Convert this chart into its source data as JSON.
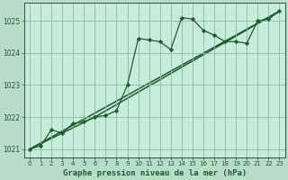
{
  "title": "Graphe pression niveau de la mer (hPa)",
  "background_color": "#b8dcc8",
  "plot_bg_color": "#c8ecdc",
  "grid_color": "#90b8a0",
  "line_color": "#1a5e2a",
  "xlim": [
    -0.5,
    23.5
  ],
  "ylim": [
    1020.75,
    1025.55
  ],
  "yticks": [
    1021,
    1022,
    1023,
    1024,
    1025
  ],
  "xticks": [
    0,
    1,
    2,
    3,
    4,
    5,
    6,
    7,
    8,
    9,
    10,
    11,
    12,
    13,
    14,
    15,
    16,
    17,
    18,
    19,
    20,
    21,
    22,
    23
  ],
  "series1_x": [
    0,
    1,
    2,
    3,
    4,
    5,
    6,
    7,
    8,
    9,
    10,
    11,
    12,
    13,
    14,
    15,
    16,
    17,
    18,
    19,
    20,
    21,
    22,
    23
  ],
  "series1_y": [
    1021.0,
    1021.1,
    1021.6,
    1021.5,
    1021.8,
    1021.85,
    1022.0,
    1022.05,
    1022.2,
    1023.0,
    1024.45,
    1024.4,
    1024.35,
    1024.1,
    1025.1,
    1025.05,
    1024.7,
    1024.55,
    1024.35,
    1024.35,
    1024.3,
    1025.0,
    1025.05,
    1025.3
  ],
  "series2_x": [
    0,
    23
  ],
  "series2_y": [
    1021.0,
    1025.3
  ],
  "series3_x": [
    0,
    6,
    23
  ],
  "series3_y": [
    1021.0,
    1022.0,
    1025.3
  ],
  "xlabel_fontsize": 6.5,
  "tick_fontsize": 5.0,
  "ylabel_fontsize": 5.5
}
